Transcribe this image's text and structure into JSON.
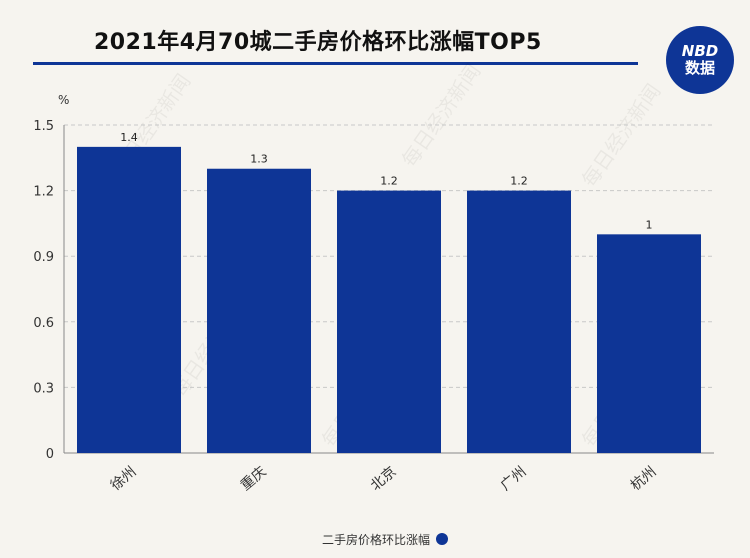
{
  "title": "2021年4月70城二手房价格环比涨幅TOP5",
  "logo": {
    "line1": "NBD",
    "line2": "数据"
  },
  "watermark": "每日经济新闻",
  "colors": {
    "bar": "#0e3596",
    "accent": "#0e3596",
    "background": "#f6f4ef"
  },
  "chart_data": {
    "type": "bar",
    "categories": [
      "徐州",
      "重庆",
      "北京",
      "广州",
      "杭州"
    ],
    "values": [
      1.4,
      1.3,
      1.2,
      1.2,
      1
    ],
    "data_labels": [
      "1.4",
      "1.3",
      "1.2",
      "1.2",
      "1"
    ],
    "ylabel": "%",
    "ylim": [
      0,
      1.5
    ],
    "yticks": [
      "0",
      "0.3",
      "0.6",
      "0.9",
      "1.2",
      "1.5"
    ],
    "grid": true,
    "legend": {
      "position": "bottom",
      "label": "二手房价格环比涨幅"
    }
  }
}
